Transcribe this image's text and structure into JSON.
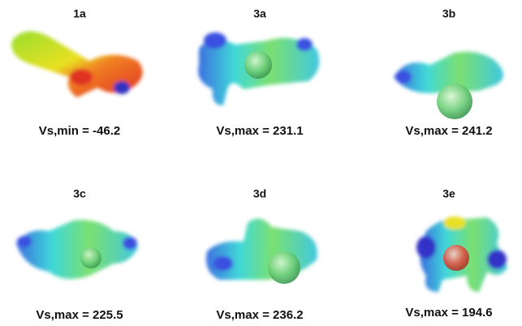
{
  "panels": [
    {
      "label": "1a",
      "value_text": "Vs,min = -46.2"
    },
    {
      "label": "3a",
      "value_text": "Vs,max = 231.1"
    },
    {
      "label": "3b",
      "value_text": "Vs,max = 241.2"
    },
    {
      "label": "3c",
      "value_text": "Vs,max = 225.5"
    },
    {
      "label": "3d",
      "value_text": "Vs,max = 236.2"
    },
    {
      "label": "3e",
      "value_text": "Vs,max = 194.6"
    }
  ]
}
